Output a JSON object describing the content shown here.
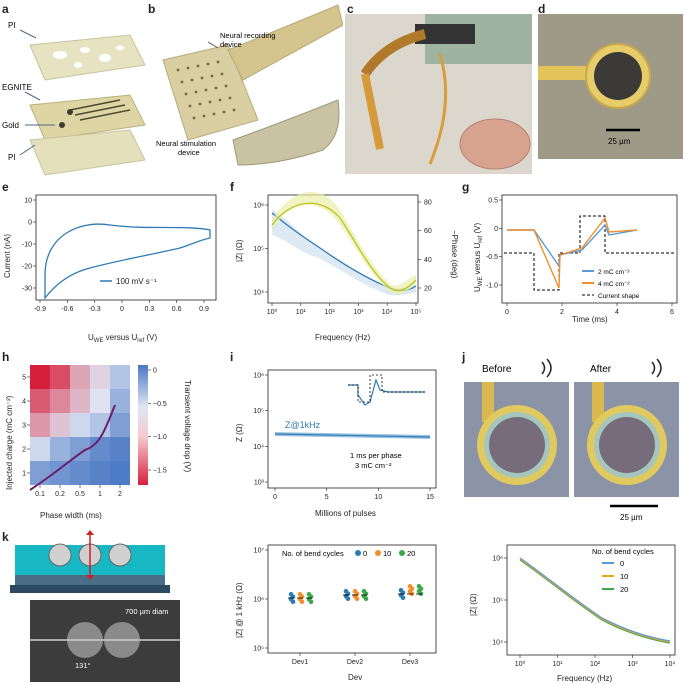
{
  "panel_labels": {
    "a": "a",
    "b": "b",
    "c": "c",
    "d": "d",
    "e": "e",
    "f": "f",
    "g": "g",
    "h": "h",
    "i": "i",
    "j": "j",
    "k": "k"
  },
  "a": {
    "pi_top": "PI",
    "egnite": "EGNITE",
    "gold": "Gold",
    "pi_bottom": "PI"
  },
  "b": {
    "recording": "Neural recording",
    "recording2": "device",
    "stimulation": "Neural stimulation",
    "stimulation2": "device"
  },
  "d": {
    "scale": "25 µm"
  },
  "e": {
    "chart_data": {
      "type": "line",
      "xlabel": "U_WE versus U_ref (V)",
      "ylabel": "Current (nA)",
      "xlim": [
        -0.95,
        0.9
      ],
      "ylim": [
        -35,
        10
      ],
      "xticks": [
        "-0.9",
        "-0.6",
        "-0.3",
        "0",
        "0.3",
        "0.6",
        "0.9"
      ],
      "yticks": [
        "10",
        "0",
        "-10",
        "-20",
        "-30"
      ],
      "legend": "100 mV s⁻¹",
      "color": "#2e7bb4"
    }
  },
  "f": {
    "chart_data": {
      "type": "line",
      "xlabel": "Frequency (Hz)",
      "ylabel": "|Z| (Ω)",
      "y2label": "−Phase (deg)",
      "xticks": [
        "10⁰",
        "10¹",
        "10²",
        "10³",
        "10⁴",
        "10⁵"
      ],
      "yticks": [
        "10⁶",
        "10⁵",
        "10⁴"
      ],
      "y2ticks": [
        "80",
        "60",
        "40",
        "20"
      ],
      "series": [
        {
          "name": "",
          "color": "#2e7bb4",
          "x": [
            1,
            10,
            100,
            1000,
            10000,
            100000
          ],
          "y": [
            5000000,
            1200000,
            150000,
            20000,
            12000,
            11000
          ]
        },
        {
          "name": "",
          "color": "#b8c61e",
          "x": [
            1,
            10,
            100,
            1000,
            10000,
            100000
          ],
          "y": [
            55,
            60,
            60,
            35,
            15,
            22
          ]
        }
      ]
    }
  },
  "g": {
    "chart_data": {
      "type": "line",
      "xlabel": "Time (ms)",
      "ylabel": "U_WE versus U_ref (V)",
      "xlim": [
        -0.2,
        6.2
      ],
      "ylim": [
        -1.25,
        0.55
      ],
      "xticks": [
        "0",
        "2",
        "4",
        "6"
      ],
      "yticks": [
        "0.5",
        "0",
        "-0.5",
        "-1.0"
      ],
      "legend": [
        "2 mC cm⁻²",
        "4 mC cm⁻²",
        "Current shape"
      ],
      "series": [
        {
          "name": "2 mC cm⁻²",
          "color": "#5b9bd5",
          "x": [
            0,
            1,
            2,
            3,
            4,
            5.8
          ],
          "y": [
            0,
            0,
            -0.72,
            -0.5,
            0.35,
            0.02
          ]
        },
        {
          "name": "4 mC cm⁻²",
          "color": "#f28e2b",
          "x": [
            0,
            1,
            2,
            3,
            4,
            5.8
          ],
          "y": [
            0,
            0,
            -1.2,
            -0.5,
            0.45,
            0.03
          ]
        }
      ]
    }
  },
  "h": {
    "chart_data": {
      "type": "heatmap",
      "xlabel": "Phase width (ms)",
      "ylabel": "Injected charge (mC cm⁻²)",
      "xticks": [
        "0.1",
        "0.2",
        "0.5",
        "1",
        "2"
      ],
      "yticks": [
        "5",
        "4",
        "3",
        "2",
        "1"
      ],
      "colorbar_label": "Transient voltage drop (V)",
      "colorbar_ticks": [
        "0",
        "−0.5",
        "−1.0",
        "−1.5"
      ],
      "values": [
        [
          -1.9,
          -1.6,
          -1.0,
          -0.7,
          -0.4
        ],
        [
          -1.5,
          -1.2,
          -0.9,
          -0.6,
          -0.3
        ],
        [
          -1.1,
          -0.8,
          -0.5,
          -0.4,
          -0.2
        ],
        [
          -0.5,
          -0.3,
          -0.2,
          -0.1,
          -0.05
        ],
        [
          -0.2,
          -0.15,
          -0.1,
          -0.05,
          -0.02
        ]
      ]
    }
  },
  "i": {
    "chart_data": {
      "type": "line",
      "xlabel": "Millions of pulses",
      "ylabel": "Z (Ω)",
      "xticks": [
        "0",
        "5",
        "10",
        "15"
      ],
      "yticks": [
        "10⁶",
        "10⁵",
        "10⁴",
        "10³"
      ],
      "series_label": "Z@1kHz",
      "note1": "1 ms per phase",
      "note2": "3 mC cm⁻²"
    }
  },
  "j": {
    "before": "Before",
    "after": "After",
    "scale": "25 µm"
  },
  "k": {
    "label": "700 µm diam",
    "angle": "131°"
  },
  "k2": {
    "chart_data": {
      "type": "scatter",
      "xlabel": "Dev",
      "ylabel": "|Z| @ 1 kHz (Ω)",
      "categories": [
        "Dev1",
        "Dev2",
        "Dev3"
      ],
      "yticks": [
        "10⁷",
        "10⁶",
        "10⁵"
      ],
      "legend_title": "No. of bend cycles",
      "series": [
        {
          "name": "0",
          "color": "#2e7bb4"
        },
        {
          "name": "10",
          "color": "#f28e2b"
        },
        {
          "name": "20",
          "color": "#3ca64b"
        }
      ]
    }
  },
  "k3": {
    "chart_data": {
      "type": "line",
      "xlabel": "Frequency (Hz)",
      "ylabel": "|Z| (Ω)",
      "xticks": [
        "10⁰",
        "10¹",
        "10²",
        "10³",
        "10⁴"
      ],
      "yticks": [
        "10⁶",
        "10⁵",
        "10⁴"
      ],
      "legend_title": "No. of bend cycles",
      "series": [
        {
          "name": "0",
          "color": "#5b9bd5"
        },
        {
          "name": "10",
          "color": "#f2a22b"
        },
        {
          "name": "20",
          "color": "#3ca64b"
        }
      ]
    }
  }
}
